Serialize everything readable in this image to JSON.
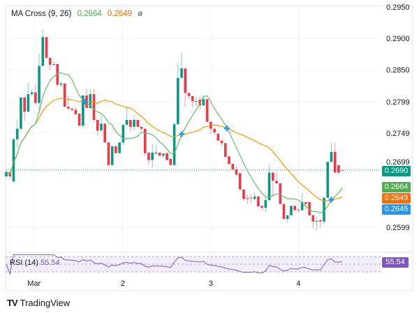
{
  "legend": {
    "indicator": "MA Cross (9, 26)",
    "fast_value": "0.2664",
    "slow_value": "0.2649",
    "eye": "ø"
  },
  "rsi_legend": {
    "name": "RSI (14)",
    "value": "55.54"
  },
  "price_labels": {
    "last": "0.2690",
    "fast": "0.2664",
    "slow": "0.2649",
    "cross": "0.2645",
    "rsi": "55.54"
  },
  "brand": {
    "name": "TradingView"
  },
  "colors": {
    "up": "#089981",
    "down": "#f23645",
    "fast_ma": "#4caf50",
    "slow_ma": "#ff6d00",
    "cross": "#2196f3",
    "rsi": "#7e57c2"
  },
  "chart_data": {
    "type": "candlestick",
    "y_ticks": [
      "0.2950",
      "0.2900",
      "0.2850",
      "0.2799",
      "0.2749",
      "0.2699",
      "0.2599"
    ],
    "ylim": [
      0.2578,
      0.295
    ],
    "x_ticks": [
      {
        "label": "Mar",
        "index": 7.6
      },
      {
        "label": "2",
        "index": 31.9
      },
      {
        "label": "3",
        "index": 56
      },
      {
        "label": "4",
        "index": 80
      }
    ],
    "ohlc": [
      [
        0.268,
        0.2689,
        0.2678,
        0.2687
      ],
      [
        0.2687,
        0.2688,
        0.2675,
        0.268
      ],
      [
        0.2672,
        0.2742,
        0.267,
        0.2739
      ],
      [
        0.2739,
        0.2771,
        0.2726,
        0.2756
      ],
      [
        0.2756,
        0.2806,
        0.2751,
        0.2806
      ],
      [
        0.2806,
        0.2806,
        0.2768,
        0.2783
      ],
      [
        0.2783,
        0.2829,
        0.2783,
        0.2811
      ],
      [
        0.2811,
        0.2818,
        0.2808,
        0.2814
      ],
      [
        0.2814,
        0.2826,
        0.2794,
        0.2797
      ],
      [
        0.2797,
        0.2876,
        0.2786,
        0.2856
      ],
      [
        0.2856,
        0.2914,
        0.2856,
        0.2902
      ],
      [
        0.2902,
        0.2902,
        0.2869,
        0.2869
      ],
      [
        0.2869,
        0.2869,
        0.2849,
        0.2858
      ],
      [
        0.2858,
        0.2863,
        0.2856,
        0.2859
      ],
      [
        0.2859,
        0.2859,
        0.2822,
        0.2826
      ],
      [
        0.2826,
        0.2831,
        0.2822,
        0.2828
      ],
      [
        0.2828,
        0.2828,
        0.2791,
        0.2791
      ],
      [
        0.2791,
        0.2809,
        0.2786,
        0.2788
      ],
      [
        0.2788,
        0.2788,
        0.2783,
        0.2786
      ],
      [
        0.2786,
        0.279,
        0.2779,
        0.2779
      ],
      [
        0.278,
        0.278,
        0.276,
        0.2761
      ],
      [
        0.2761,
        0.2809,
        0.2757,
        0.2809
      ],
      [
        0.2809,
        0.2821,
        0.2789,
        0.2789
      ],
      [
        0.2789,
        0.2819,
        0.2789,
        0.2811
      ],
      [
        0.2811,
        0.2819,
        0.2767,
        0.277
      ],
      [
        0.277,
        0.277,
        0.2745,
        0.2753
      ],
      [
        0.2753,
        0.2777,
        0.2753,
        0.2764
      ],
      [
        0.2764,
        0.2764,
        0.2734,
        0.2734
      ],
      [
        0.2734,
        0.2734,
        0.2697,
        0.2698
      ],
      [
        0.2698,
        0.2728,
        0.2698,
        0.2728
      ],
      [
        0.2728,
        0.2728,
        0.2717,
        0.2717
      ],
      [
        0.2717,
        0.2734,
        0.2717,
        0.2734
      ],
      [
        0.2734,
        0.2762,
        0.273,
        0.2762
      ],
      [
        0.2762,
        0.2792,
        0.2762,
        0.277
      ],
      [
        0.277,
        0.277,
        0.2751,
        0.2759
      ],
      [
        0.2759,
        0.2777,
        0.2753,
        0.277
      ],
      [
        0.277,
        0.277,
        0.2759,
        0.2759
      ],
      [
        0.2759,
        0.2759,
        0.2753,
        0.2756
      ],
      [
        0.2756,
        0.2756,
        0.2712,
        0.2717
      ],
      [
        0.2718,
        0.2718,
        0.2699,
        0.2706
      ],
      [
        0.2706,
        0.2732,
        0.2694,
        0.2718
      ],
      [
        0.2716,
        0.273,
        0.2716,
        0.2718
      ],
      [
        0.2718,
        0.2718,
        0.2713,
        0.2713
      ],
      [
        0.2713,
        0.2717,
        0.271,
        0.2716
      ],
      [
        0.2717,
        0.2717,
        0.2706,
        0.2706
      ],
      [
        0.2708,
        0.2708,
        0.2698,
        0.2698
      ],
      [
        0.2698,
        0.2766,
        0.2698,
        0.2763
      ],
      [
        0.2763,
        0.2861,
        0.2763,
        0.2837
      ],
      [
        0.2837,
        0.2877,
        0.2837,
        0.2852
      ],
      [
        0.2852,
        0.2852,
        0.2791,
        0.2813
      ],
      [
        0.2813,
        0.2813,
        0.2803,
        0.2808
      ],
      [
        0.2808,
        0.2808,
        0.279,
        0.28
      ],
      [
        0.2799,
        0.2807,
        0.2792,
        0.28
      ],
      [
        0.2802,
        0.2807,
        0.2787,
        0.2793
      ],
      [
        0.2793,
        0.2809,
        0.2793,
        0.2803
      ],
      [
        0.2803,
        0.2803,
        0.2767,
        0.2767
      ],
      [
        0.2767,
        0.2767,
        0.2748,
        0.2756
      ],
      [
        0.2756,
        0.2756,
        0.2746,
        0.275
      ],
      [
        0.2748,
        0.2748,
        0.2737,
        0.2737
      ],
      [
        0.2737,
        0.2737,
        0.2728,
        0.2733
      ],
      [
        0.2733,
        0.2733,
        0.2711,
        0.2711
      ],
      [
        0.2712,
        0.2712,
        0.27,
        0.27
      ],
      [
        0.27,
        0.27,
        0.2691,
        0.2691
      ],
      [
        0.2691,
        0.2696,
        0.268,
        0.2683
      ],
      [
        0.2685,
        0.2686,
        0.2659,
        0.2659
      ],
      [
        0.2659,
        0.2659,
        0.2641,
        0.2644
      ],
      [
        0.2645,
        0.2652,
        0.2636,
        0.2644
      ],
      [
        0.2646,
        0.2652,
        0.2637,
        0.2645
      ],
      [
        0.2644,
        0.2655,
        0.2641,
        0.2648
      ],
      [
        0.2648,
        0.2648,
        0.2632,
        0.2632
      ],
      [
        0.2633,
        0.2633,
        0.2627,
        0.263
      ],
      [
        0.263,
        0.2646,
        0.2623,
        0.2642
      ],
      [
        0.2642,
        0.2699,
        0.2642,
        0.2686
      ],
      [
        0.2686,
        0.2686,
        0.2647,
        0.2673
      ],
      [
        0.2673,
        0.2686,
        0.2669,
        0.2669
      ],
      [
        0.2669,
        0.2669,
        0.2636,
        0.2636
      ],
      [
        0.2636,
        0.2636,
        0.2612,
        0.2612
      ],
      [
        0.2612,
        0.2618,
        0.2607,
        0.2618
      ],
      [
        0.2618,
        0.2633,
        0.2618,
        0.2633
      ],
      [
        0.2633,
        0.2633,
        0.2626,
        0.2626
      ],
      [
        0.2627,
        0.2629,
        0.2622,
        0.2626
      ],
      [
        0.2626,
        0.2653,
        0.2626,
        0.2639
      ],
      [
        0.2639,
        0.2639,
        0.2626,
        0.2636
      ],
      [
        0.2639,
        0.2639,
        0.2618,
        0.2618
      ],
      [
        0.2618,
        0.2618,
        0.2597,
        0.2608
      ],
      [
        0.2608,
        0.2616,
        0.2594,
        0.2609
      ],
      [
        0.261,
        0.2613,
        0.2599,
        0.2608
      ],
      [
        0.2608,
        0.2646,
        0.2604,
        0.2646
      ],
      [
        0.2646,
        0.2703,
        0.2646,
        0.2703
      ],
      [
        0.2703,
        0.2734,
        0.2703,
        0.2719
      ],
      [
        0.2719,
        0.2734,
        0.2686,
        0.2686
      ],
      [
        0.2698,
        0.2698,
        0.2683,
        0.2686
      ],
      [
        0.2689,
        0.269,
        0.2689,
        0.269
      ]
    ],
    "ohlc_order": [
      "open",
      "high",
      "low",
      "close"
    ],
    "indicators": [
      {
        "name": "MA Cross (9, 26)",
        "fast": 9,
        "slow": 26
      },
      {
        "name": "RSI (14)",
        "period": 14,
        "bands": [
          70,
          50,
          30
        ]
      }
    ]
  }
}
